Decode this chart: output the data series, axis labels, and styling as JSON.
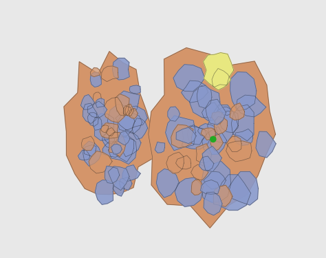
{
  "background_color": "#e8e8e8",
  "colors": {
    "rna_salmon": "#D4956A",
    "protein_blue": "#8899CC",
    "highlight_yellow": "#E8E880",
    "active_green": "#22AA22",
    "outline": "#222222",
    "background": "#e8e8e8"
  }
}
